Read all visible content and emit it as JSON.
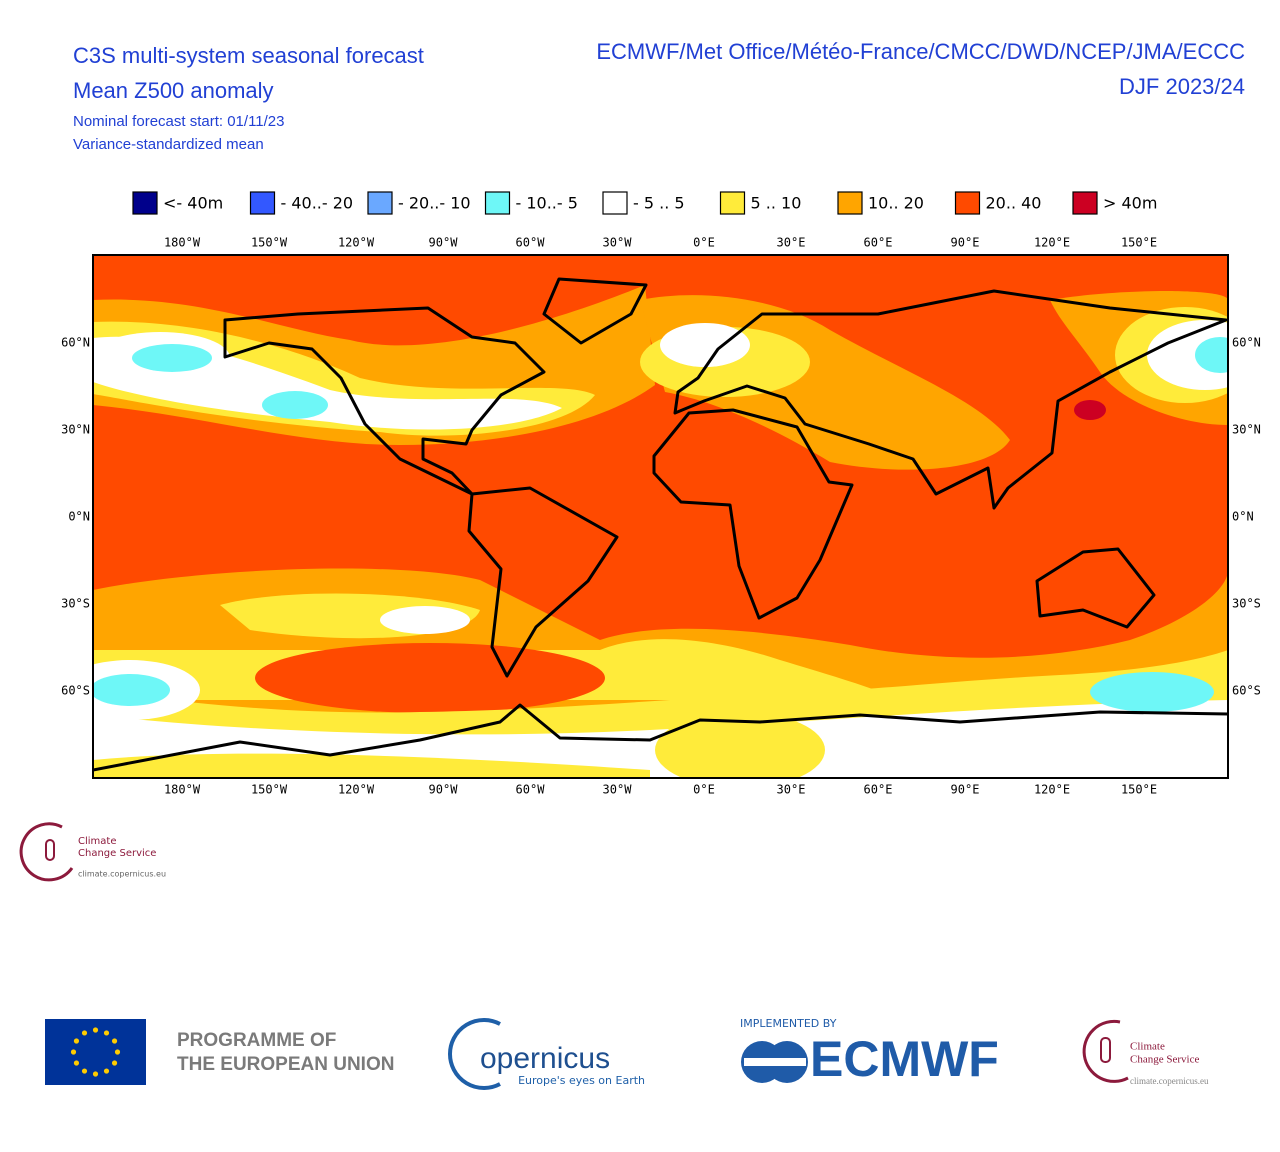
{
  "header": {
    "title": "C3S multi-system seasonal forecast",
    "subtitle": "Mean Z500 anomaly",
    "forecast_start": "Nominal forecast start: 01/11/23",
    "method": "Variance-standardized mean",
    "systems": "ECMWF/Met Office/Météo-France/CMCC/DWD/NCEP/JMA/ECCC",
    "season": "DJF 2023/24"
  },
  "legend": {
    "items": [
      {
        "label": "<- 40m",
        "color": "#00008b"
      },
      {
        "label": "- 40..- 20",
        "color": "#3358ff"
      },
      {
        "label": "- 20..- 10",
        "color": "#6aa8ff"
      },
      {
        "label": "- 10..- 5",
        "color": "#6ef7f7"
      },
      {
        "label": "- 5 .. 5",
        "color": "#ffffff"
      },
      {
        "label": "5 .. 10",
        "color": "#ffeb3a"
      },
      {
        "label": "10.. 20",
        "color": "#ffa500"
      },
      {
        "label": "20.. 40",
        "color": "#ff4a00"
      },
      {
        "label": "> 40m",
        "color": "#cc0022"
      }
    ]
  },
  "map": {
    "lon_labels": [
      "180°W",
      "150°W",
      "120°W",
      "90°W",
      "60°W",
      "30°W",
      "0°E",
      "30°E",
      "60°E",
      "90°E",
      "120°E",
      "150°E"
    ],
    "lat_labels": [
      "60°N",
      "30°N",
      "0°N",
      "30°S",
      "60°S"
    ]
  },
  "logos": {
    "c3s_small": {
      "line1": "Climate",
      "line2": "Change Service",
      "url": "climate.copernicus.eu"
    },
    "eu": {
      "line1": "PROGRAMME OF",
      "line2": "THE EUROPEAN UNION"
    },
    "copernicus": {
      "name": "opernicus",
      "tagline": "Europe's eyes on Earth"
    },
    "ecmwf": {
      "caption": "IMPLEMENTED BY",
      "name": "ECMWF"
    },
    "c3s": {
      "line1": "Climate",
      "line2": "Change Service",
      "url": "climate.copernicus.eu"
    }
  }
}
